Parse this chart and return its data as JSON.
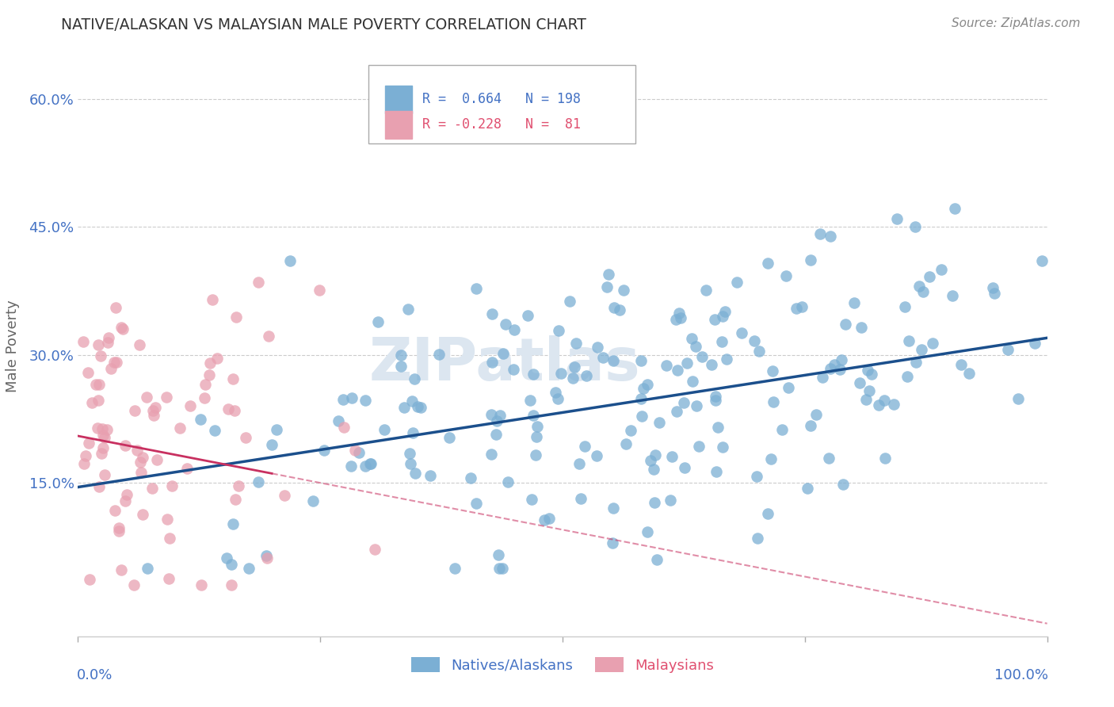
{
  "title": "NATIVE/ALASKAN VS MALAYSIAN MALE POVERTY CORRELATION CHART",
  "source": "Source: ZipAtlas.com",
  "ylabel": "Male Poverty",
  "blue_R": 0.664,
  "blue_N": 198,
  "pink_R": -0.228,
  "pink_N": 81,
  "xlim": [
    0.0,
    1.0
  ],
  "ylim": [
    -0.03,
    0.65
  ],
  "yticks": [
    0.0,
    0.15,
    0.3,
    0.45,
    0.6
  ],
  "ytick_labels": [
    "",
    "15.0%",
    "30.0%",
    "45.0%",
    "60.0%"
  ],
  "blue_color": "#7bafd4",
  "blue_line_color": "#1b4f8c",
  "pink_color": "#e8a0b0",
  "pink_line_color": "#c83060",
  "background_color": "#ffffff",
  "grid_color": "#cccccc",
  "title_color": "#333333",
  "axis_label_color": "#4472c4",
  "watermark_color": "#dce6f0",
  "legend_blue_color": "#4472c4",
  "legend_pink_color": "#e05070"
}
